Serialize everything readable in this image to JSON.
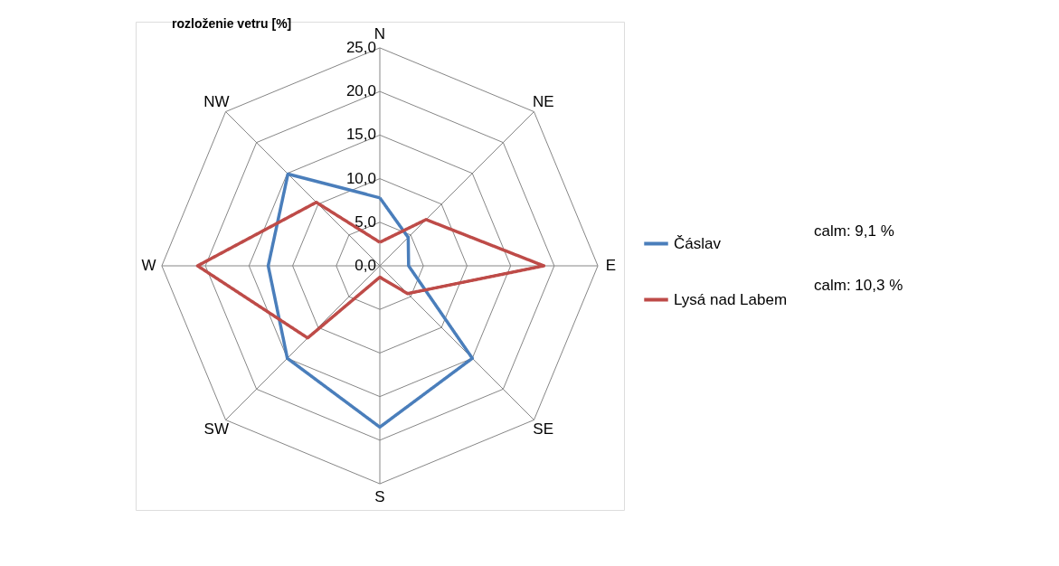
{
  "chart_data": {
    "type": "radar",
    "title": "rozloženie vetru [%]",
    "categories": [
      "N",
      "NE",
      "E",
      "SE",
      "S",
      "SW",
      "W",
      "NW"
    ],
    "series": [
      {
        "name": "Čáslav",
        "color": "#4a7ebb",
        "values": [
          7.8,
          4.6,
          3.3,
          15.0,
          18.5,
          15.0,
          12.8,
          14.9
        ]
      },
      {
        "name": "Lysá nad Labem",
        "color": "#be4b48",
        "values": [
          2.7,
          7.5,
          18.8,
          4.5,
          1.3,
          11.7,
          20.9,
          10.3
        ]
      }
    ],
    "ylim": [
      0,
      25
    ],
    "yticks": [
      {
        "value": 0,
        "label": "0,0"
      },
      {
        "value": 5,
        "label": "5,0"
      },
      {
        "value": 10,
        "label": "10,0"
      },
      {
        "value": 15,
        "label": "15,0"
      },
      {
        "value": 20,
        "label": "20,0"
      },
      {
        "value": 25,
        "label": "25,0"
      }
    ],
    "legend": "right",
    "grid": true,
    "marker": "none",
    "line_style": "solid",
    "annotations": [
      "calm: 9,1 %",
      "calm: 10,3 %"
    ]
  }
}
